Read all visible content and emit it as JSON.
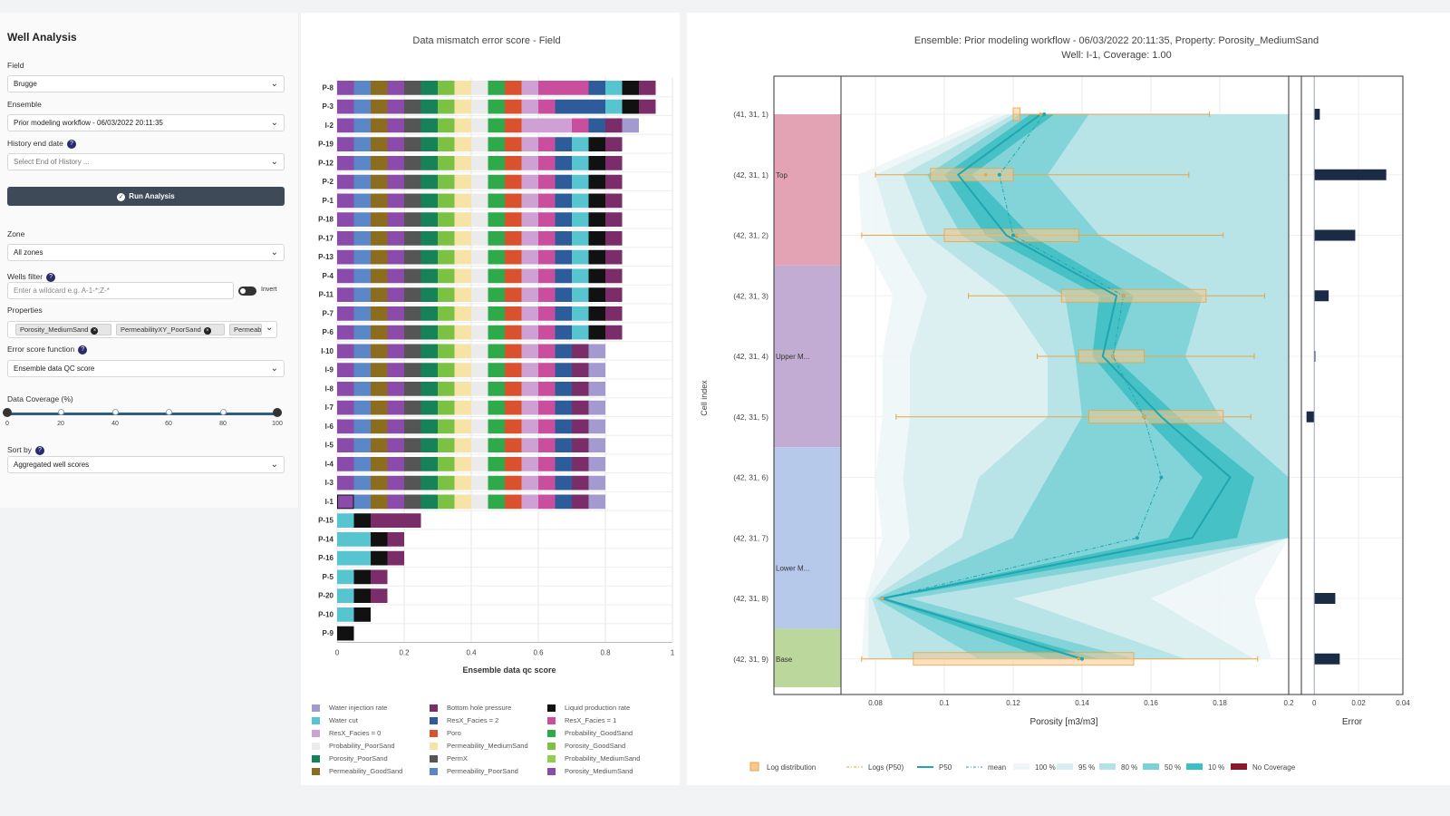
{
  "sidebar": {
    "title": "Well Analysis",
    "field_label": "Field",
    "field_value": "Brugge",
    "ensemble_label": "Ensemble",
    "ensemble_value": "Prior modeling workflow - 06/03/2022 20:11:35",
    "history_label": "History end date",
    "history_placeholder": "Select End of History ...",
    "run_label": "Run Analysis",
    "zone_label": "Zone",
    "zone_value": "All zones",
    "wells_filter_label": "Wells filter",
    "wells_filter_placeholder": "Enter a wildcard e.g. A-1-*;Z-*",
    "invert_label": "Invert",
    "properties_label": "Properties",
    "properties_chips": [
      "Porosity_MediumSand",
      "PermeabilityXY_PoorSand",
      "Permeabi"
    ],
    "error_fn_label": "Error score function",
    "error_fn_value": "Ensemble data QC score",
    "coverage_label": "Data Coverage (%)",
    "coverage_ticks": [
      "0",
      "20",
      "40",
      "60",
      "80",
      "100"
    ],
    "coverage_range": [
      0,
      100
    ],
    "sort_label": "Sort by",
    "sort_value": "Aggregated well scores"
  },
  "bar_legend": [
    {
      "label": "Water injection rate",
      "color": "#a39ad0"
    },
    {
      "label": "Bottom hole pressure",
      "color": "#7b2d6a"
    },
    {
      "label": "Liquid production rate",
      "color": "#111111"
    },
    {
      "label": "Water cut",
      "color": "#56c5cf"
    },
    {
      "label": "ResX_Facies = 2",
      "color": "#2e5b9a"
    },
    {
      "label": "ResX_Facies = 1",
      "color": "#c94f9e"
    },
    {
      "label": "ResX_Facies = 0",
      "color": "#cfa0d4"
    },
    {
      "label": "Poro",
      "color": "#d9522d"
    },
    {
      "label": "Probability_GoodSand",
      "color": "#2faa4a"
    },
    {
      "label": "Probability_PoorSand",
      "color": "#ebebeb"
    },
    {
      "label": "Permeability_MediumSand",
      "color": "#f6e3a5"
    },
    {
      "label": "Porosity_GoodSand",
      "color": "#7bc143"
    },
    {
      "label": "Porosity_PoorSand",
      "color": "#16825a"
    },
    {
      "label": "PermX",
      "color": "#555555"
    },
    {
      "label": "Probability_MediumSand",
      "color": "#8ecf4d"
    },
    {
      "label": "Permeability_GoodSand",
      "color": "#8c6d1f"
    },
    {
      "label": "Permeability_PoorSand",
      "color": "#5b86c8"
    },
    {
      "label": "Porosity_MediumSand",
      "color": "#8a4bab"
    }
  ],
  "chart_data": [
    {
      "type": "bar",
      "orientation": "horizontal-stacked",
      "title": "Data mismatch error score - Field",
      "xlabel": "Ensemble data qc score",
      "ylabel": "",
      "xlim": [
        0,
        1
      ],
      "xticks": [
        "0",
        "0.2",
        "0.4",
        "0.6",
        "0.8",
        "1"
      ],
      "segment_width": 0.05,
      "categories": [
        "P-8",
        "P-3",
        "I-2",
        "P-19",
        "P-12",
        "P-2",
        "P-1",
        "P-18",
        "P-17",
        "P-13",
        "P-4",
        "P-11",
        "P-7",
        "P-6",
        "I-10",
        "I-9",
        "I-8",
        "I-7",
        "I-6",
        "I-5",
        "I-4",
        "I-3",
        "I-1",
        "P-15",
        "P-14",
        "P-16",
        "P-5",
        "P-20",
        "P-10",
        "P-9"
      ],
      "stacks": [
        [
          "#8a4bab",
          "#5b86c8",
          "#8c6d1f",
          "#8a4bab",
          "#555555",
          "#16825a",
          "#7bc143",
          "#f6e3a5",
          "#ebebeb",
          "#2faa4a",
          "#d9522d",
          "#cfa0d4",
          "#c94f9e",
          "#c94f9e",
          "#c94f9e",
          "#2e5b9a",
          "#56c5cf",
          "#111111",
          "#7b2d6a"
        ],
        [
          "#8a4bab",
          "#5b86c8",
          "#8c6d1f",
          "#8a4bab",
          "#555555",
          "#16825a",
          "#7bc143",
          "#f6e3a5",
          "#ebebeb",
          "#2faa4a",
          "#d9522d",
          "#cfa0d4",
          "#c94f9e",
          "#2e5b9a",
          "#2e5b9a",
          "#2e5b9a",
          "#56c5cf",
          "#111111",
          "#7b2d6a"
        ],
        [
          "#8a4bab",
          "#5b86c8",
          "#8c6d1f",
          "#8a4bab",
          "#555555",
          "#16825a",
          "#7bc143",
          "#f6e3a5",
          "#ebebeb",
          "#2faa4a",
          "#d9522d",
          "#cfa0d4",
          "#cfa0d4",
          "#cfa0d4",
          "#c94f9e",
          "#2e5b9a",
          "#7b2d6a",
          "#a39ad0"
        ],
        [
          "#8a4bab",
          "#5b86c8",
          "#8c6d1f",
          "#8a4bab",
          "#555555",
          "#16825a",
          "#7bc143",
          "#f6e3a5",
          "#ebebeb",
          "#2faa4a",
          "#d9522d",
          "#cfa0d4",
          "#c94f9e",
          "#2e5b9a",
          "#56c5cf",
          "#111111",
          "#7b2d6a"
        ],
        [
          "#8a4bab",
          "#5b86c8",
          "#8c6d1f",
          "#8a4bab",
          "#555555",
          "#16825a",
          "#7bc143",
          "#f6e3a5",
          "#ebebeb",
          "#2faa4a",
          "#d9522d",
          "#cfa0d4",
          "#c94f9e",
          "#2e5b9a",
          "#56c5cf",
          "#111111",
          "#7b2d6a"
        ],
        [
          "#8a4bab",
          "#5b86c8",
          "#8c6d1f",
          "#8a4bab",
          "#555555",
          "#16825a",
          "#7bc143",
          "#f6e3a5",
          "#ebebeb",
          "#2faa4a",
          "#d9522d",
          "#cfa0d4",
          "#c94f9e",
          "#2e5b9a",
          "#56c5cf",
          "#111111",
          "#7b2d6a"
        ],
        [
          "#8a4bab",
          "#5b86c8",
          "#8c6d1f",
          "#8a4bab",
          "#555555",
          "#16825a",
          "#7bc143",
          "#f6e3a5",
          "#ebebeb",
          "#2faa4a",
          "#d9522d",
          "#cfa0d4",
          "#c94f9e",
          "#2e5b9a",
          "#56c5cf",
          "#111111",
          "#7b2d6a"
        ],
        [
          "#8a4bab",
          "#5b86c8",
          "#8c6d1f",
          "#8a4bab",
          "#555555",
          "#16825a",
          "#7bc143",
          "#f6e3a5",
          "#ebebeb",
          "#2faa4a",
          "#d9522d",
          "#cfa0d4",
          "#c94f9e",
          "#2e5b9a",
          "#56c5cf",
          "#111111",
          "#7b2d6a"
        ],
        [
          "#8a4bab",
          "#5b86c8",
          "#8c6d1f",
          "#8a4bab",
          "#555555",
          "#16825a",
          "#7bc143",
          "#f6e3a5",
          "#ebebeb",
          "#2faa4a",
          "#d9522d",
          "#cfa0d4",
          "#c94f9e",
          "#2e5b9a",
          "#56c5cf",
          "#111111",
          "#7b2d6a"
        ],
        [
          "#8a4bab",
          "#5b86c8",
          "#8c6d1f",
          "#8a4bab",
          "#555555",
          "#16825a",
          "#7bc143",
          "#f6e3a5",
          "#ebebeb",
          "#2faa4a",
          "#d9522d",
          "#cfa0d4",
          "#c94f9e",
          "#2e5b9a",
          "#56c5cf",
          "#111111",
          "#7b2d6a"
        ],
        [
          "#8a4bab",
          "#5b86c8",
          "#8c6d1f",
          "#8a4bab",
          "#555555",
          "#16825a",
          "#7bc143",
          "#f6e3a5",
          "#ebebeb",
          "#2faa4a",
          "#d9522d",
          "#cfa0d4",
          "#c94f9e",
          "#2e5b9a",
          "#56c5cf",
          "#111111",
          "#7b2d6a"
        ],
        [
          "#8a4bab",
          "#5b86c8",
          "#8c6d1f",
          "#8a4bab",
          "#555555",
          "#16825a",
          "#7bc143",
          "#f6e3a5",
          "#ebebeb",
          "#2faa4a",
          "#d9522d",
          "#cfa0d4",
          "#c94f9e",
          "#2e5b9a",
          "#56c5cf",
          "#111111",
          "#7b2d6a"
        ],
        [
          "#8a4bab",
          "#5b86c8",
          "#8c6d1f",
          "#8a4bab",
          "#555555",
          "#16825a",
          "#7bc143",
          "#f6e3a5",
          "#ebebeb",
          "#2faa4a",
          "#d9522d",
          "#cfa0d4",
          "#c94f9e",
          "#2e5b9a",
          "#56c5cf",
          "#111111",
          "#7b2d6a"
        ],
        [
          "#8a4bab",
          "#5b86c8",
          "#8c6d1f",
          "#8a4bab",
          "#555555",
          "#16825a",
          "#7bc143",
          "#f6e3a5",
          "#ebebeb",
          "#2faa4a",
          "#d9522d",
          "#cfa0d4",
          "#c94f9e",
          "#2e5b9a",
          "#56c5cf",
          "#111111",
          "#7b2d6a"
        ],
        [
          "#8a4bab",
          "#5b86c8",
          "#8c6d1f",
          "#8a4bab",
          "#555555",
          "#16825a",
          "#7bc143",
          "#f6e3a5",
          "#ebebeb",
          "#2faa4a",
          "#d9522d",
          "#cfa0d4",
          "#c94f9e",
          "#2e5b9a",
          "#7b2d6a",
          "#a39ad0"
        ],
        [
          "#8a4bab",
          "#5b86c8",
          "#8c6d1f",
          "#8a4bab",
          "#555555",
          "#16825a",
          "#7bc143",
          "#f6e3a5",
          "#ebebeb",
          "#2faa4a",
          "#d9522d",
          "#cfa0d4",
          "#c94f9e",
          "#2e5b9a",
          "#7b2d6a",
          "#a39ad0"
        ],
        [
          "#8a4bab",
          "#5b86c8",
          "#8c6d1f",
          "#8a4bab",
          "#555555",
          "#16825a",
          "#7bc143",
          "#f6e3a5",
          "#ebebeb",
          "#2faa4a",
          "#d9522d",
          "#cfa0d4",
          "#c94f9e",
          "#2e5b9a",
          "#7b2d6a",
          "#a39ad0"
        ],
        [
          "#8a4bab",
          "#5b86c8",
          "#8c6d1f",
          "#8a4bab",
          "#555555",
          "#16825a",
          "#7bc143",
          "#f6e3a5",
          "#ebebeb",
          "#2faa4a",
          "#d9522d",
          "#cfa0d4",
          "#c94f9e",
          "#2e5b9a",
          "#7b2d6a",
          "#a39ad0"
        ],
        [
          "#8a4bab",
          "#5b86c8",
          "#8c6d1f",
          "#8a4bab",
          "#555555",
          "#16825a",
          "#7bc143",
          "#f6e3a5",
          "#ebebeb",
          "#2faa4a",
          "#d9522d",
          "#cfa0d4",
          "#c94f9e",
          "#2e5b9a",
          "#7b2d6a",
          "#a39ad0"
        ],
        [
          "#8a4bab",
          "#5b86c8",
          "#8c6d1f",
          "#8a4bab",
          "#555555",
          "#16825a",
          "#7bc143",
          "#f6e3a5",
          "#ebebeb",
          "#2faa4a",
          "#d9522d",
          "#cfa0d4",
          "#c94f9e",
          "#2e5b9a",
          "#7b2d6a",
          "#a39ad0"
        ],
        [
          "#8a4bab",
          "#5b86c8",
          "#8c6d1f",
          "#8a4bab",
          "#555555",
          "#16825a",
          "#7bc143",
          "#f6e3a5",
          "#ebebeb",
          "#2faa4a",
          "#d9522d",
          "#cfa0d4",
          "#c94f9e",
          "#2e5b9a",
          "#7b2d6a",
          "#a39ad0"
        ],
        [
          "#8a4bab",
          "#5b86c8",
          "#8c6d1f",
          "#8a4bab",
          "#555555",
          "#16825a",
          "#7bc143",
          "#f6e3a5",
          "#ebebeb",
          "#2faa4a",
          "#d9522d",
          "#cfa0d4",
          "#c94f9e",
          "#2e5b9a",
          "#7b2d6a",
          "#a39ad0"
        ],
        [
          "#8a4bab",
          "#5b86c8",
          "#8c6d1f",
          "#8a4bab",
          "#555555",
          "#16825a",
          "#7bc143",
          "#f6e3a5",
          "#ebebeb",
          "#2faa4a",
          "#d9522d",
          "#cfa0d4",
          "#c94f9e",
          "#2e5b9a",
          "#7b2d6a",
          "#a39ad0"
        ],
        [
          "#56c5cf",
          "#111111",
          "#7b2d6a",
          "#7b2d6a",
          "#7b2d6a"
        ],
        [
          "#56c5cf",
          "#56c5cf",
          "#111111",
          "#7b2d6a"
        ],
        [
          "#56c5cf",
          "#56c5cf",
          "#111111",
          "#7b2d6a"
        ],
        [
          "#56c5cf",
          "#111111",
          "#7b2d6a"
        ],
        [
          "#56c5cf",
          "#111111",
          "#7b2d6a"
        ],
        [
          "#56c5cf",
          "#111111"
        ],
        [
          "#111111"
        ]
      ]
    },
    {
      "type": "line",
      "title": "Ensemble: Prior modeling workflow - 06/03/2022 20:11:35, Property: Porosity_MediumSand",
      "subtitle": "Well: I-1, Coverage: 1.00",
      "xlabel": "Porosity [m3/m3]",
      "ylabel": "Cell index",
      "xlim": [
        0.07,
        0.2
      ],
      "xticks": [
        "0.08",
        "0.1",
        "0.12",
        "0.14",
        "0.16",
        "0.18",
        "0.2"
      ],
      "categories": [
        "(41, 31, 1)",
        "(42, 31, 1)",
        "(42, 31, 2)",
        "(42, 31, 3)",
        "(42, 31, 4)",
        "(42, 31, 5)",
        "(42, 31, 6)",
        "(42, 31, 7)",
        "(42, 31, 8)",
        "(42, 31, 9)"
      ],
      "zones": [
        {
          "name": "Top",
          "from": 0,
          "to": 2.5,
          "color": "#e4a3b4",
          "label_row": 1
        },
        {
          "name": "Upper M...",
          "from": 2.5,
          "to": 5.5,
          "color": "#c2acd3",
          "label_row": 4
        },
        {
          "name": "Lower M...",
          "from": 5.5,
          "to": 8.5,
          "color": "#b7c9ea",
          "label_row": 7.5
        },
        {
          "name": "Base",
          "from": 8.5,
          "to": 9.5,
          "color": "#bcd79c",
          "label_row": 9
        }
      ],
      "series": [
        {
          "name": "100 %",
          "color": "#eef6f8",
          "lo": [
            0.115,
            0.075,
            0.076,
            0.085,
            0.082,
            0.082,
            0.08,
            0.082,
            0.077,
            0.076
          ],
          "hi": [
            0.2,
            0.2,
            0.2,
            0.2,
            0.2,
            0.2,
            0.2,
            0.2,
            0.19,
            0.195
          ]
        },
        {
          "name": "95 %",
          "color": "#d9eef1",
          "lo": [
            0.118,
            0.08,
            0.085,
            0.095,
            0.09,
            0.09,
            0.088,
            0.09,
            0.078,
            0.078
          ],
          "hi": [
            0.2,
            0.2,
            0.2,
            0.2,
            0.2,
            0.2,
            0.2,
            0.2,
            0.16,
            0.19
          ]
        },
        {
          "name": "80 %",
          "color": "#b4e1e6",
          "lo": [
            0.12,
            0.088,
            0.095,
            0.118,
            0.13,
            0.13,
            0.11,
            0.105,
            0.079,
            0.085
          ],
          "hi": [
            0.2,
            0.2,
            0.2,
            0.2,
            0.2,
            0.2,
            0.2,
            0.2,
            0.12,
            0.17
          ]
        },
        {
          "name": "50 %",
          "color": "#7cd1d6",
          "lo": [
            0.122,
            0.095,
            0.105,
            0.135,
            0.138,
            0.14,
            0.13,
            0.12,
            0.08,
            0.11
          ],
          "hi": [
            0.142,
            0.13,
            0.145,
            0.175,
            0.17,
            0.18,
            0.2,
            0.2,
            0.09,
            0.155
          ]
        },
        {
          "name": "10 %",
          "color": "#3fbfc4",
          "lo": [
            0.125,
            0.1,
            0.112,
            0.145,
            0.143,
            0.158,
            0.175,
            0.165,
            0.081,
            0.13
          ],
          "hi": [
            0.132,
            0.108,
            0.125,
            0.155,
            0.149,
            0.168,
            0.19,
            0.185,
            0.083,
            0.145
          ]
        }
      ],
      "p50": [
        0.128,
        0.104,
        0.118,
        0.15,
        0.146,
        0.163,
        0.183,
        0.172,
        0.082,
        0.14
      ],
      "mean": [
        0.129,
        0.116,
        0.12,
        0.152,
        0.149,
        0.158,
        0.163,
        0.156,
        0.082,
        0.14
      ],
      "log_boxes": [
        {
          "row": 0,
          "q1": 0.12,
          "q3": 0.122,
          "wlo": 0.12,
          "whi": 0.177
        },
        {
          "row": 1,
          "q1": 0.096,
          "q3": 0.12,
          "wlo": 0.08,
          "whi": 0.171
        },
        {
          "row": 2,
          "q1": 0.1,
          "q3": 0.139,
          "wlo": 0.076,
          "whi": 0.181
        },
        {
          "row": 3,
          "q1": 0.134,
          "q3": 0.176,
          "wlo": 0.107,
          "whi": 0.193
        },
        {
          "row": 4,
          "q1": 0.139,
          "q3": 0.158,
          "wlo": 0.127,
          "whi": 0.19
        },
        {
          "row": 5,
          "q1": 0.142,
          "q3": 0.181,
          "wlo": 0.086,
          "whi": 0.189
        },
        {
          "row": 9,
          "q1": 0.091,
          "q3": 0.155,
          "wlo": 0.076,
          "whi": 0.191
        }
      ],
      "log_p50": [
        0.128,
        0.112,
        0.121,
        0.152,
        0.149,
        0.158,
        null,
        null,
        0.082,
        0.139
      ]
    },
    {
      "type": "bar",
      "orientation": "horizontal",
      "xlabel": "Error",
      "xlim": [
        -0.005,
        0.04
      ],
      "xticks": [
        "0",
        "0.02",
        "0.04"
      ],
      "categories": [
        "(41, 31, 1)",
        "(42, 31, 1)",
        "(42, 31, 2)",
        "(42, 31, 3)",
        "(42, 31, 4)",
        "(42, 31, 5)",
        "(42, 31, 6)",
        "(42, 31, 7)",
        "(42, 31, 8)",
        "(42, 31, 9)"
      ],
      "values": [
        0.0025,
        0.0325,
        0.0185,
        0.0065,
        0.0005,
        -0.0035,
        0,
        0,
        0.0095,
        0.0115
      ],
      "color": "#1c2b45"
    }
  ],
  "right_legend": [
    {
      "label": "Log distribution",
      "type": "box",
      "color": "#f7c98f"
    },
    {
      "label": "Logs (P50)",
      "type": "dashdot",
      "color": "#e8a443"
    },
    {
      "label": "P50",
      "type": "line",
      "color": "#1fa6b0"
    },
    {
      "label": "mean",
      "type": "dashdot",
      "color": "#1fa6b0"
    },
    {
      "label": "100 %",
      "type": "fill",
      "color": "#eef6f8"
    },
    {
      "label": "95 %",
      "type": "fill",
      "color": "#d9eef1"
    },
    {
      "label": "80 %",
      "type": "fill",
      "color": "#b4e1e6"
    },
    {
      "label": "50 %",
      "type": "fill",
      "color": "#7cd1d6"
    },
    {
      "label": "10 %",
      "type": "fill",
      "color": "#3fbfc4"
    },
    {
      "label": "No Coverage",
      "type": "fill",
      "color": "#8b1a2b"
    }
  ]
}
